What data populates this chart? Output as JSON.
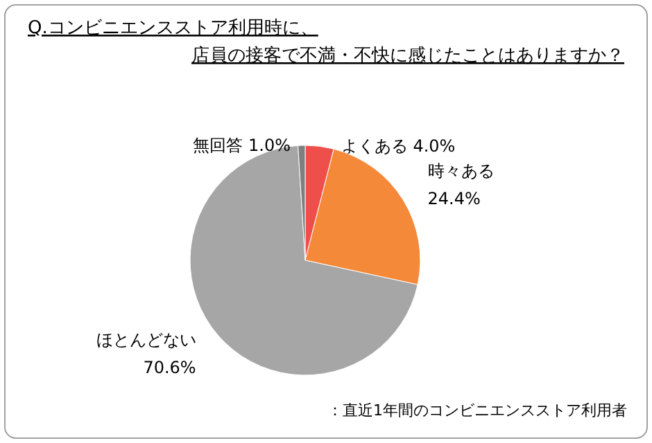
{
  "chart_data": {
    "type": "pie",
    "title": "Q.コンビニエンスストア利用時に、",
    "subtitle": "店員の接客で不満・不快に感じたことはありますか？",
    "categories": [
      "よくある",
      "時々ある",
      "ほとんどない",
      "無回答"
    ],
    "values": [
      4.0,
      24.4,
      70.6,
      1.0
    ],
    "value_labels": [
      "4.0%",
      "24.4%",
      "70.6%",
      "1.0%"
    ],
    "colors": [
      "#ef4f4a",
      "#f5893a",
      "#a6a6a6",
      "#7f7f7f"
    ],
    "annotations": [
      "：直近1年間のコンビニエンスストア利用者"
    ]
  }
}
